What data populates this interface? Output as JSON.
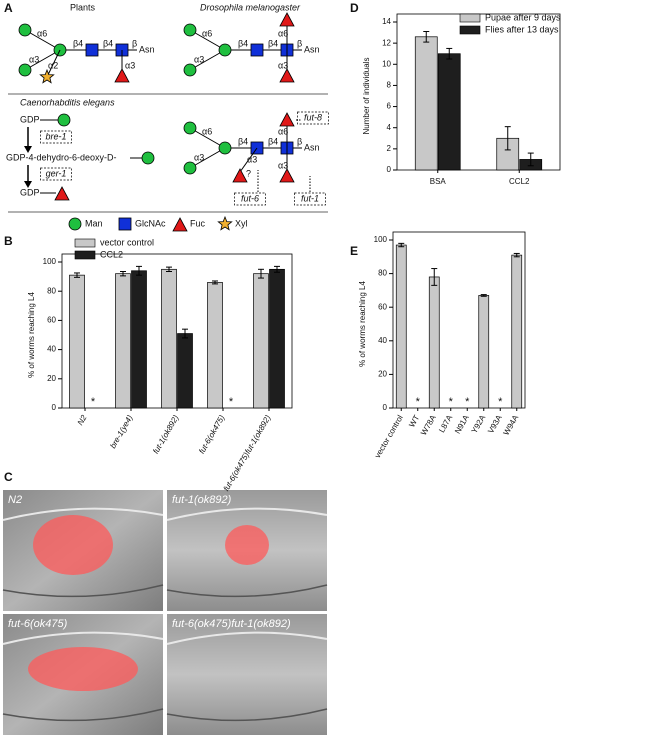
{
  "panel_labels": [
    "A",
    "B",
    "C",
    "D",
    "E"
  ],
  "panel_a": {
    "plants": {
      "title": "Plants",
      "linkages": [
        "α6",
        "α3",
        "α2",
        "β4",
        "β4",
        "β",
        "α3"
      ],
      "aglycone": "Asn"
    },
    "drosophila": {
      "title": "Drosophila melanogaster",
      "linkages": [
        "α6",
        "α3",
        "β4",
        "β4",
        "β",
        "α6",
        "α3"
      ],
      "aglycone": "Asn"
    },
    "elegans": {
      "title": "Caenorhabditis elegans",
      "pathway": [
        "GDP",
        "bre-1",
        "GDP-4-dehydro-6-deoxy-D-",
        "ger-1",
        "GDP"
      ],
      "linkages": [
        "α6",
        "α3",
        "β4",
        "β4",
        "β",
        "α6",
        "α3",
        "α3",
        "?"
      ],
      "enzymes": [
        "fut-8",
        "fut-6",
        "fut-1"
      ],
      "aglycone": "Asn"
    },
    "legend": [
      "Man",
      "GlcNAc",
      "Fuc",
      "Xyl"
    ]
  },
  "panel_c": {
    "images": [
      "N2",
      "fut-1(ok892)",
      "fut-6(ok475)",
      "fut-6(ok475)fut-1(ok892)"
    ]
  },
  "chart_data": [
    {
      "type": "bar",
      "ylabel": "% of worms reaching L4",
      "categories": [
        "N2",
        "bre-1(ye4)",
        "fut-1(ok892)",
        "fut-6(ok475)",
        "fut-6(ok475)fut-1(ok892)"
      ],
      "series": [
        {
          "name": "vector control",
          "color": "#c8c8c8",
          "values": [
            91,
            92,
            95,
            86,
            92
          ],
          "errors": [
            1.5,
            1.5,
            1.5,
            1,
            3
          ]
        },
        {
          "name": "CCL2",
          "color": "#1e1e1e",
          "values": [
            null,
            94,
            51,
            null,
            95
          ],
          "errors": [
            null,
            3,
            3,
            null,
            2
          ],
          "significance": [
            "*",
            null,
            null,
            "*",
            null
          ]
        }
      ],
      "ylim": [
        0,
        100
      ],
      "yticks": [
        0,
        20,
        40,
        60,
        80,
        100
      ],
      "legend": "top-left"
    },
    {
      "type": "bar",
      "ylabel": "Number of individuals",
      "categories": [
        "BSA",
        "CCL2"
      ],
      "series": [
        {
          "name": "Pupae after  9 days",
          "color": "#c8c8c8",
          "values": [
            12.6,
            3.0
          ],
          "errors": [
            0.5,
            1.1
          ]
        },
        {
          "name": "Flies after 13 days",
          "color": "#1e1e1e",
          "values": [
            11.0,
            1.0
          ],
          "errors": [
            0.5,
            0.6
          ]
        }
      ],
      "ylim": [
        0,
        14
      ],
      "yticks": [
        0,
        2,
        4,
        6,
        8,
        10,
        12,
        14
      ],
      "legend": "top-right"
    },
    {
      "type": "bar",
      "ylabel": "% of worms reaching L4",
      "categories": [
        "vector control",
        "WT",
        "W78A",
        "L87A",
        "N91A",
        "Y92A",
        "V93A",
        "W94A"
      ],
      "series": [
        {
          "name": "vector control",
          "color": "#c8c8c8",
          "values": [
            97,
            null,
            78,
            null,
            null,
            67,
            null,
            91
          ],
          "errors": [
            1,
            null,
            5,
            null,
            null,
            0.5,
            null,
            1
          ],
          "significance": [
            null,
            "*",
            null,
            "*",
            "*",
            null,
            "*",
            null
          ]
        }
      ],
      "ylim": [
        0,
        100
      ],
      "yticks": [
        0,
        20,
        40,
        60,
        80,
        100
      ]
    }
  ]
}
